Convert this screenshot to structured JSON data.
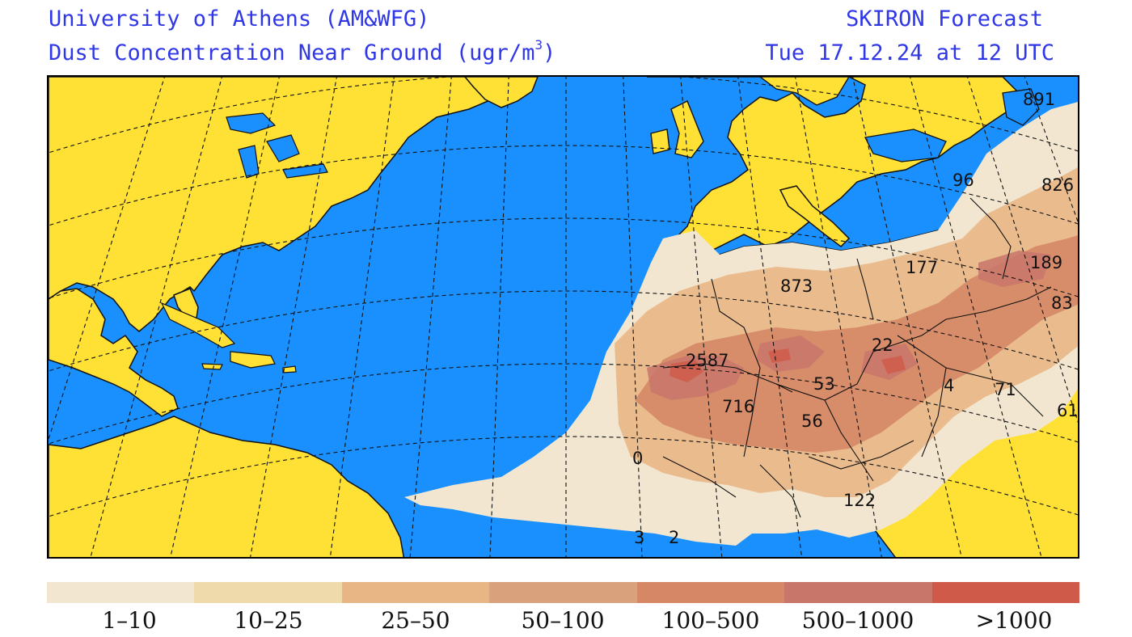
{
  "header": {
    "org": "University of Athens (AM&WFG)",
    "product_prefix": "Dust Concentration Near Ground (ugr/m",
    "product_sup": "3",
    "product_suffix": ")",
    "forecast_name": "SKIRON Forecast",
    "valid_time": "Tue 17.12.24 at 12 UTC"
  },
  "map": {
    "ocean_color": "#1a90ff",
    "land_color": "#ffe135",
    "point_labels": [
      "891",
      "96",
      "826",
      "189",
      "177",
      "873",
      "83",
      "22",
      "2587",
      "53",
      "4",
      "71",
      "716",
      "56",
      "61",
      "0",
      "122",
      "3",
      "2"
    ]
  },
  "legend": {
    "items": [
      {
        "label": "1–10",
        "color": "#f2e6d0"
      },
      {
        "label": "10–25",
        "color": "#eedaaa"
      },
      {
        "label": "25–50",
        "color": "#e8b685"
      },
      {
        "label": "50–100",
        "color": "#d9a17c"
      },
      {
        "label": "100–500",
        "color": "#d68866"
      },
      {
        "label": "500–1000",
        "color": "#c8766a"
      },
      {
        "label": ">1000",
        "color": "#cf5a4a"
      }
    ]
  }
}
